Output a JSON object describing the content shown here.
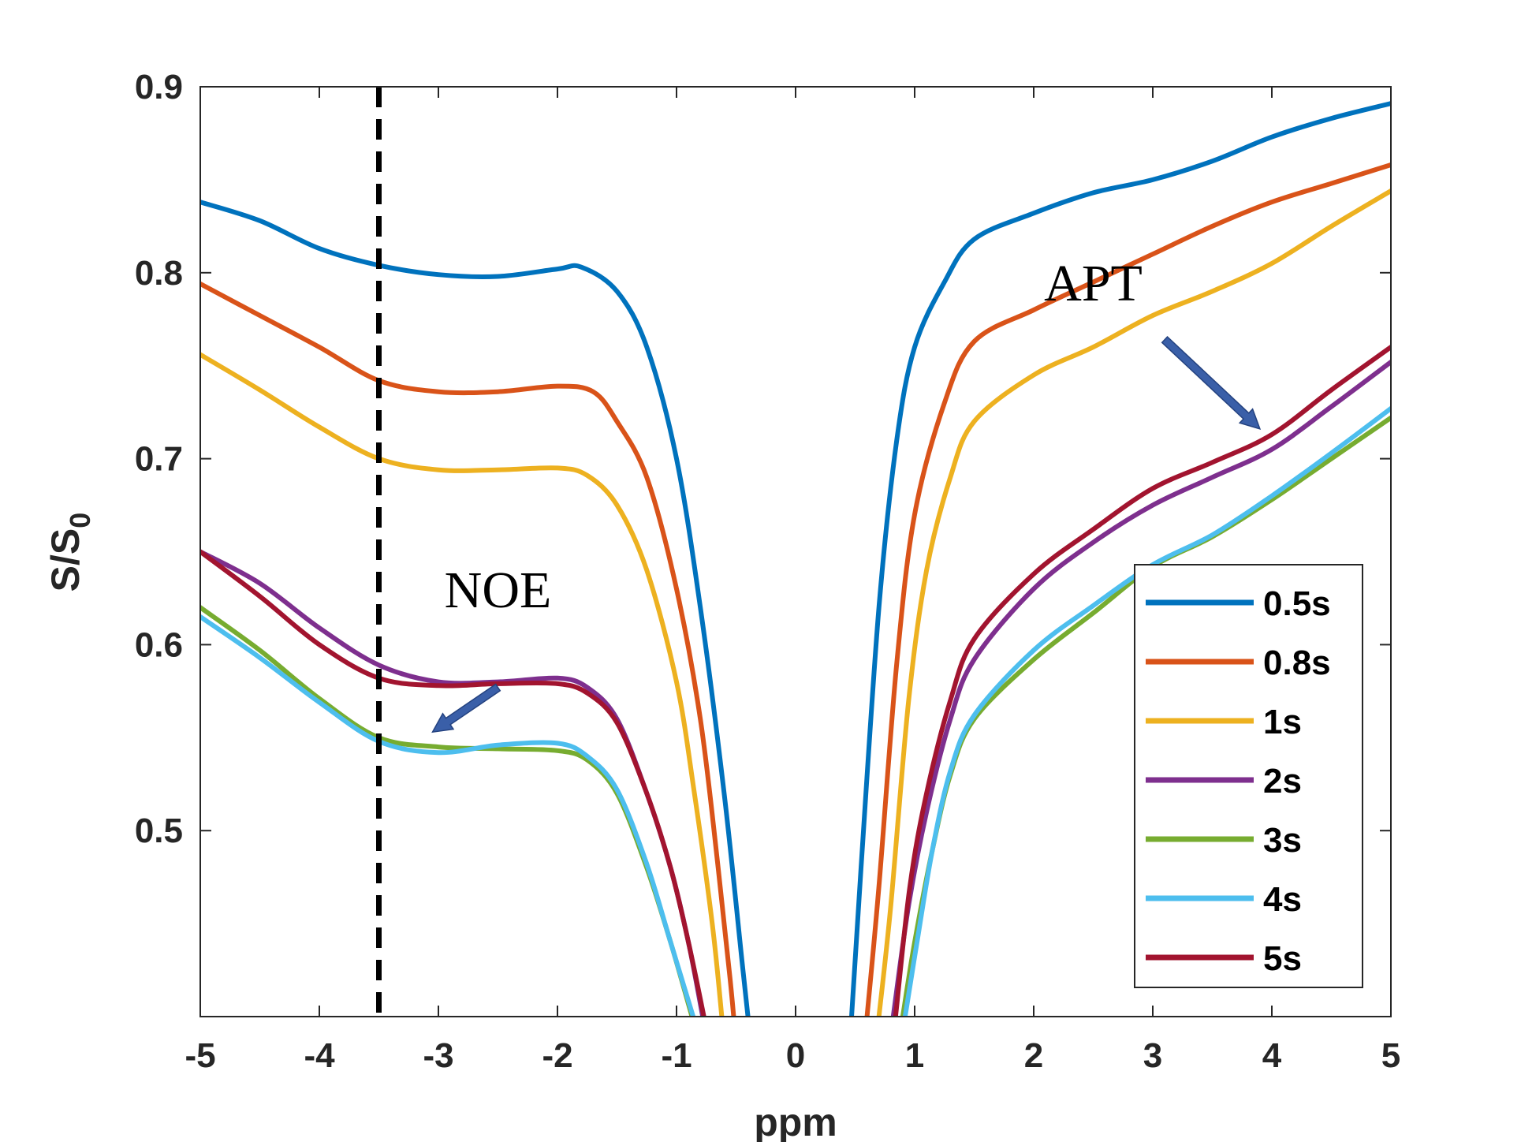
{
  "chart_data": {
    "type": "line",
    "title": "",
    "xlabel": "ppm",
    "ylabel_main": "S/S",
    "ylabel_sub": "0",
    "xlim": [
      -5,
      5
    ],
    "ylim": [
      0.4,
      0.9
    ],
    "xticks": [
      "-5",
      "-4",
      "-3",
      "-2",
      "-1",
      "0",
      "1",
      "2",
      "3",
      "4",
      "5"
    ],
    "yticks": [
      "0.5",
      "0.6",
      "0.7",
      "0.8",
      "0.9"
    ],
    "grid": false,
    "legend_position": "bottom-right",
    "reference_line": {
      "x": -3.5,
      "style": "dashed"
    },
    "annotations": [
      {
        "text": "NOE",
        "arrow_from": [
          -2.5,
          0.577
        ],
        "arrow_to": [
          -3.05,
          0.553
        ]
      },
      {
        "text": "APT",
        "arrow_from": [
          3.1,
          0.764
        ],
        "arrow_to": [
          3.9,
          0.716
        ]
      }
    ],
    "series": [
      {
        "name": "0.5s",
        "color": "#0072BD",
        "points": [
          [
            -5,
            0.838
          ],
          [
            -4.5,
            0.828
          ],
          [
            -4,
            0.813
          ],
          [
            -3.5,
            0.804
          ],
          [
            -3,
            0.799
          ],
          [
            -2.5,
            0.798
          ],
          [
            -2,
            0.802
          ],
          [
            -1.8,
            0.803
          ],
          [
            -1.5,
            0.79
          ],
          [
            -1.25,
            0.76
          ],
          [
            -1,
            0.7
          ],
          [
            -0.8,
            0.62
          ],
          [
            -0.6,
            0.52
          ],
          [
            -0.45,
            0.43
          ],
          [
            -0.4,
            0.4
          ],
          [
            0.47,
            0.4
          ],
          [
            0.55,
            0.48
          ],
          [
            0.7,
            0.62
          ],
          [
            0.85,
            0.71
          ],
          [
            1,
            0.76
          ],
          [
            1.25,
            0.795
          ],
          [
            1.5,
            0.818
          ],
          [
            2,
            0.832
          ],
          [
            2.5,
            0.843
          ],
          [
            3,
            0.85
          ],
          [
            3.5,
            0.86
          ],
          [
            4,
            0.873
          ],
          [
            4.5,
            0.883
          ],
          [
            5,
            0.891
          ]
        ]
      },
      {
        "name": "0.8s",
        "color": "#D95319",
        "points": [
          [
            -5,
            0.794
          ],
          [
            -4.5,
            0.777
          ],
          [
            -4,
            0.76
          ],
          [
            -3.5,
            0.742
          ],
          [
            -3,
            0.736
          ],
          [
            -2.5,
            0.736
          ],
          [
            -2,
            0.739
          ],
          [
            -1.7,
            0.736
          ],
          [
            -1.5,
            0.72
          ],
          [
            -1.25,
            0.69
          ],
          [
            -1,
            0.63
          ],
          [
            -0.8,
            0.56
          ],
          [
            -0.65,
            0.48
          ],
          [
            -0.55,
            0.42
          ],
          [
            -0.52,
            0.4
          ],
          [
            0.6,
            0.4
          ],
          [
            0.7,
            0.47
          ],
          [
            0.85,
            0.59
          ],
          [
            1,
            0.67
          ],
          [
            1.25,
            0.73
          ],
          [
            1.5,
            0.763
          ],
          [
            2,
            0.78
          ],
          [
            2.5,
            0.795
          ],
          [
            3,
            0.81
          ],
          [
            3.5,
            0.825
          ],
          [
            4,
            0.838
          ],
          [
            4.5,
            0.848
          ],
          [
            5,
            0.858
          ]
        ]
      },
      {
        "name": "1s",
        "color": "#EDB120",
        "points": [
          [
            -5,
            0.756
          ],
          [
            -4.5,
            0.737
          ],
          [
            -4,
            0.717
          ],
          [
            -3.5,
            0.7
          ],
          [
            -3,
            0.694
          ],
          [
            -2.5,
            0.694
          ],
          [
            -2,
            0.695
          ],
          [
            -1.75,
            0.691
          ],
          [
            -1.5,
            0.675
          ],
          [
            -1.25,
            0.64
          ],
          [
            -1,
            0.58
          ],
          [
            -0.85,
            0.52
          ],
          [
            -0.7,
            0.45
          ],
          [
            -0.62,
            0.4
          ],
          [
            0.7,
            0.4
          ],
          [
            0.8,
            0.46
          ],
          [
            0.95,
            0.57
          ],
          [
            1.1,
            0.64
          ],
          [
            1.3,
            0.69
          ],
          [
            1.5,
            0.72
          ],
          [
            2,
            0.745
          ],
          [
            2.5,
            0.76
          ],
          [
            3,
            0.777
          ],
          [
            3.5,
            0.79
          ],
          [
            4,
            0.805
          ],
          [
            4.5,
            0.825
          ],
          [
            5,
            0.844
          ]
        ]
      },
      {
        "name": "2s",
        "color": "#7E2F8E",
        "points": [
          [
            -5,
            0.65
          ],
          [
            -4.5,
            0.633
          ],
          [
            -4,
            0.609
          ],
          [
            -3.5,
            0.589
          ],
          [
            -3,
            0.58
          ],
          [
            -2.5,
            0.58
          ],
          [
            -2,
            0.582
          ],
          [
            -1.75,
            0.577
          ],
          [
            -1.5,
            0.56
          ],
          [
            -1.25,
            0.52
          ],
          [
            -1.05,
            0.48
          ],
          [
            -0.9,
            0.44
          ],
          [
            -0.78,
            0.4
          ],
          [
            0.82,
            0.4
          ],
          [
            0.95,
            0.46
          ],
          [
            1.1,
            0.51
          ],
          [
            1.3,
            0.56
          ],
          [
            1.5,
            0.592
          ],
          [
            2,
            0.63
          ],
          [
            2.5,
            0.655
          ],
          [
            3,
            0.675
          ],
          [
            3.5,
            0.69
          ],
          [
            4,
            0.705
          ],
          [
            4.5,
            0.728
          ],
          [
            5,
            0.752
          ]
        ]
      },
      {
        "name": "3s",
        "color": "#77AC30",
        "points": [
          [
            -5,
            0.62
          ],
          [
            -4.5,
            0.597
          ],
          [
            -4,
            0.571
          ],
          [
            -3.5,
            0.55
          ],
          [
            -3,
            0.545
          ],
          [
            -2.5,
            0.544
          ],
          [
            -2,
            0.543
          ],
          [
            -1.75,
            0.538
          ],
          [
            -1.5,
            0.52
          ],
          [
            -1.25,
            0.48
          ],
          [
            -1.05,
            0.44
          ],
          [
            -0.87,
            0.4
          ],
          [
            0.9,
            0.4
          ],
          [
            1,
            0.44
          ],
          [
            1.15,
            0.49
          ],
          [
            1.3,
            0.53
          ],
          [
            1.5,
            0.56
          ],
          [
            2,
            0.592
          ],
          [
            2.5,
            0.617
          ],
          [
            3,
            0.642
          ],
          [
            3.5,
            0.658
          ],
          [
            4,
            0.678
          ],
          [
            4.5,
            0.7
          ],
          [
            5,
            0.722
          ]
        ]
      },
      {
        "name": "4s",
        "color": "#4DBEEE",
        "points": [
          [
            -5,
            0.615
          ],
          [
            -4.5,
            0.593
          ],
          [
            -4,
            0.569
          ],
          [
            -3.5,
            0.548
          ],
          [
            -3,
            0.542
          ],
          [
            -2.5,
            0.546
          ],
          [
            -2,
            0.547
          ],
          [
            -1.75,
            0.54
          ],
          [
            -1.5,
            0.522
          ],
          [
            -1.25,
            0.482
          ],
          [
            -1.05,
            0.44
          ],
          [
            -0.86,
            0.4
          ],
          [
            0.92,
            0.4
          ],
          [
            1.02,
            0.44
          ],
          [
            1.15,
            0.49
          ],
          [
            1.3,
            0.532
          ],
          [
            1.5,
            0.562
          ],
          [
            2,
            0.597
          ],
          [
            2.5,
            0.621
          ],
          [
            3,
            0.643
          ],
          [
            3.5,
            0.659
          ],
          [
            4,
            0.68
          ],
          [
            4.5,
            0.703
          ],
          [
            5,
            0.727
          ]
        ]
      },
      {
        "name": "5s",
        "color": "#A2142F",
        "points": [
          [
            -5,
            0.65
          ],
          [
            -4.5,
            0.626
          ],
          [
            -4,
            0.6
          ],
          [
            -3.5,
            0.582
          ],
          [
            -3,
            0.578
          ],
          [
            -2.5,
            0.579
          ],
          [
            -2,
            0.579
          ],
          [
            -1.75,
            0.574
          ],
          [
            -1.5,
            0.558
          ],
          [
            -1.25,
            0.52
          ],
          [
            -1.05,
            0.48
          ],
          [
            -0.9,
            0.44
          ],
          [
            -0.77,
            0.4
          ],
          [
            0.84,
            0.4
          ],
          [
            0.96,
            0.47
          ],
          [
            1.1,
            0.52
          ],
          [
            1.3,
            0.57
          ],
          [
            1.5,
            0.603
          ],
          [
            2,
            0.638
          ],
          [
            2.5,
            0.662
          ],
          [
            3,
            0.684
          ],
          [
            3.5,
            0.698
          ],
          [
            4,
            0.713
          ],
          [
            4.5,
            0.737
          ],
          [
            5,
            0.76
          ]
        ]
      }
    ]
  }
}
